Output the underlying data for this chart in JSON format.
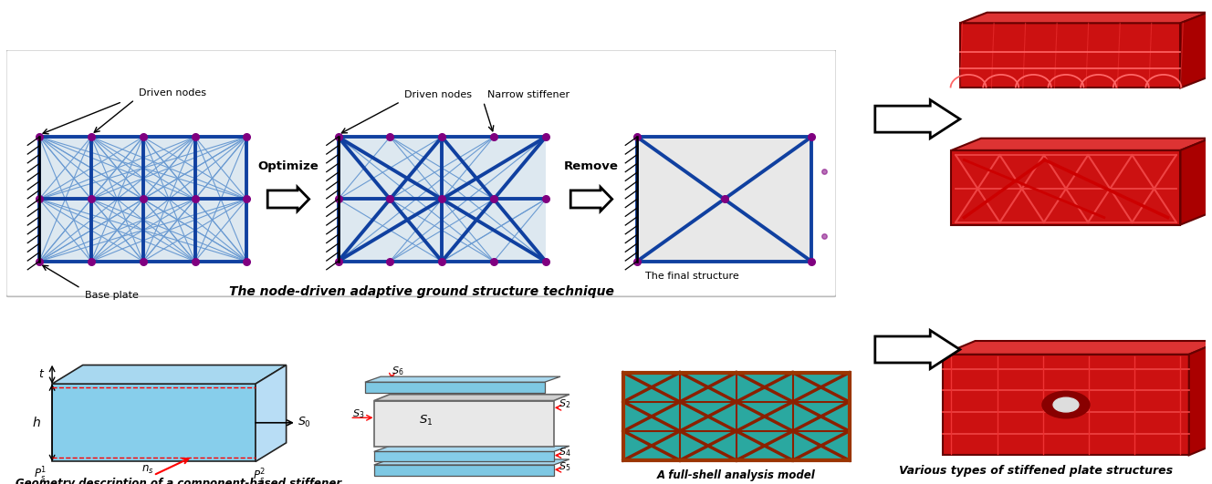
{
  "bg_color": "#ffffff",
  "grid_bg1": "#dde8f0",
  "grid_bg2": "#dde8f0",
  "grid_bg3": "#e8e8e8",
  "blue_dark": "#1040a0",
  "blue_med": "#4169e1",
  "blue_light": "#6b9bd2",
  "node_purple": "#800080",
  "stiffener_blue_front": "#87ceeb",
  "stiffener_blue_top": "#add8e6",
  "stiffener_blue_side": "#c0dff0",
  "layer_blue": "#87ceeb",
  "layer_blue_top": "#b8dcea",
  "mesh_teal": "#2e9e9e",
  "mesh_teal_cell": "#30b0a0",
  "mesh_red": "#8b0000",
  "red_struct1": "#cc1111",
  "red_struct2": "#bb1111",
  "arrow_fill": "#ffffff",
  "top_caption": "The node-driven adaptive ground structure technique",
  "bot_caption1": "Geometry description of a component-based stiffener",
  "bot_caption2": "A full-shell analysis model",
  "bot_caption3": "Various types of stiffened plate structures",
  "driven_nodes": "Driven nodes",
  "narrow_stiffener": "Narrow stiffener",
  "base_plate": "Base plate",
  "final_structure": "The final structure",
  "optimize": "Optimize",
  "remove": "Remove"
}
